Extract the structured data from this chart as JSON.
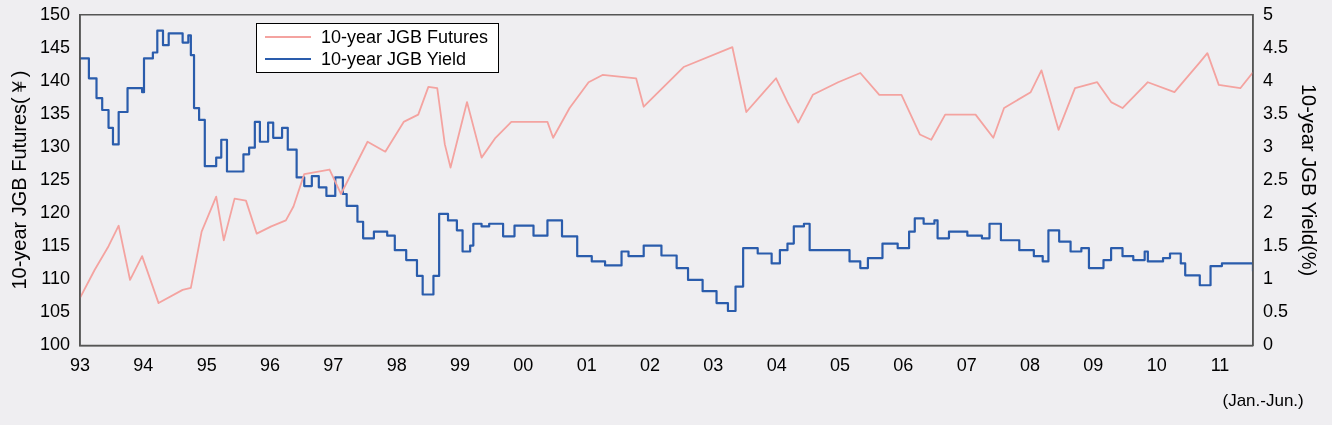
{
  "chart_data": {
    "type": "line",
    "ylabel": "10-year JGB Futures(￥)",
    "y2label": "10-year JGB Yield(%)",
    "xlim": [
      1993,
      2011.52
    ],
    "xticks": [
      {
        "value": 1993,
        "label": "93"
      },
      {
        "value": 1994,
        "label": "94"
      },
      {
        "value": 1995,
        "label": "95"
      },
      {
        "value": 1996,
        "label": "96"
      },
      {
        "value": 1997,
        "label": "97"
      },
      {
        "value": 1998,
        "label": "98"
      },
      {
        "value": 1999,
        "label": "99"
      },
      {
        "value": 2000,
        "label": "00"
      },
      {
        "value": 2001,
        "label": "01"
      },
      {
        "value": 2002,
        "label": "02"
      },
      {
        "value": 2003,
        "label": "03"
      },
      {
        "value": 2004,
        "label": "04"
      },
      {
        "value": 2005,
        "label": "05"
      },
      {
        "value": 2006,
        "label": "06"
      },
      {
        "value": 2007,
        "label": "07"
      },
      {
        "value": 2008,
        "label": "08"
      },
      {
        "value": 2009,
        "label": "09"
      },
      {
        "value": 2010,
        "label": "10"
      },
      {
        "value": 2011,
        "label": "11"
      }
    ],
    "ylim": [
      100,
      150
    ],
    "yticks": [
      100,
      105,
      110,
      115,
      120,
      125,
      130,
      135,
      140,
      145,
      150
    ],
    "y2lim": [
      0,
      5
    ],
    "y2ticks": [
      0,
      0.5,
      1,
      1.5,
      2,
      2.5,
      3,
      3.5,
      4,
      4.5,
      5
    ],
    "grid": false,
    "legend": "top left",
    "marker": "none",
    "annotations": [
      "(Jan.-Jun.)"
    ],
    "series": [
      {
        "name": "10-year JGB Futures",
        "color": "#f4a3a0",
        "x": [
          1993.0,
          1993.23,
          1993.45,
          1993.61,
          1993.79,
          1993.98,
          1994.24,
          1994.62,
          1994.75,
          1994.92,
          1995.15,
          1995.27,
          1995.44,
          1995.62,
          1995.79,
          1996.02,
          1996.25,
          1996.37,
          1996.54,
          1996.94,
          1997.12,
          1997.54,
          1997.82,
          1998.11,
          1998.34,
          1998.5,
          1998.64,
          1998.76,
          1998.85,
          1999.11,
          1999.34,
          1999.56,
          1999.81,
          2000.38,
          2000.47,
          2000.73,
          2001.03,
          2001.25,
          2001.78,
          2001.9,
          2002.53,
          2003.3,
          2003.52,
          2003.99,
          2004.17,
          2004.34,
          2004.57,
          2004.97,
          2005.32,
          2005.62,
          2005.97,
          2006.26,
          2006.44,
          2006.66,
          2007.14,
          2007.42,
          2007.59,
          2008.01,
          2008.18,
          2008.45,
          2008.71,
          2009.06,
          2009.28,
          2009.46,
          2009.86,
          2010.28,
          2010.68,
          2010.8,
          2010.98,
          2011.32,
          2011.52
        ],
        "values": [
          107.2,
          111.4,
          115,
          118.1,
          109.9,
          113.5,
          106.4,
          108.4,
          108.7,
          117.2,
          122.5,
          115.9,
          122.2,
          121.9,
          116.9,
          118,
          118.9,
          121,
          125.9,
          126.6,
          122.9,
          130.8,
          129.3,
          133.8,
          134.9,
          139.1,
          138.9,
          130.4,
          126.9,
          136.8,
          128.4,
          131.4,
          133.8,
          133.8,
          131.4,
          135.9,
          139.8,
          140.9,
          140.4,
          136.1,
          142.1,
          145.1,
          135.3,
          140.4,
          136.8,
          133.7,
          137.9,
          139.8,
          141.2,
          137.9,
          137.9,
          131.9,
          131.1,
          134.9,
          134.9,
          131.4,
          135.9,
          138.3,
          141.6,
          132.6,
          138.9,
          139.8,
          136.8,
          135.9,
          139.8,
          138.3,
          142.8,
          144.2,
          139.4,
          138.9,
          141.3
        ]
      },
      {
        "name": "10-year JGB Yield",
        "color": "#2a5cac",
        "type": "step",
        "axis": "y2",
        "x": [
          1993.0,
          1993.14,
          1993.26,
          1993.35,
          1993.45,
          1993.52,
          1993.61,
          1993.75,
          1993.98,
          1994.01,
          1994.15,
          1994.22,
          1994.31,
          1994.4,
          1994.62,
          1994.71,
          1994.75,
          1994.8,
          1994.88,
          1994.97,
          1995.15,
          1995.23,
          1995.32,
          1995.58,
          1995.67,
          1995.76,
          1995.84,
          1995.97,
          1996.05,
          1996.19,
          1996.28,
          1996.42,
          1996.54,
          1996.66,
          1996.77,
          1996.89,
          1997.03,
          1997.15,
          1997.21,
          1997.38,
          1997.47,
          1997.64,
          1997.85,
          1997.97,
          1998.15,
          1998.32,
          1998.41,
          1998.58,
          1998.67,
          1998.81,
          1998.95,
          1999.04,
          1999.16,
          1999.21,
          1999.34,
          1999.46,
          1999.68,
          1999.86,
          2000.16,
          2000.38,
          2000.61,
          2000.85,
          2001.08,
          2001.29,
          2001.55,
          2001.66,
          2001.9,
          2002.18,
          2002.42,
          2002.6,
          2002.83,
          2003.05,
          2003.23,
          2003.35,
          2003.47,
          2003.7,
          2003.92,
          2004.05,
          2004.17,
          2004.27,
          2004.43,
          2004.52,
          2004.97,
          2005.15,
          2005.32,
          2005.44,
          2005.67,
          2005.91,
          2006.09,
          2006.18,
          2006.32,
          2006.49,
          2006.54,
          2006.72,
          2007.01,
          2007.24,
          2007.36,
          2007.54,
          2007.71,
          2007.83,
          2008.06,
          2008.2,
          2008.29,
          2008.46,
          2008.64,
          2008.81,
          2008.93,
          2009.16,
          2009.28,
          2009.46,
          2009.63,
          2009.81,
          2009.86,
          2010.1,
          2010.21,
          2010.38,
          2010.45,
          2010.68,
          2010.85,
          2011.03,
          2011.25,
          2011.52
        ],
        "values": [
          4.34,
          4.04,
          3.74,
          3.56,
          3.29,
          3.04,
          3.53,
          3.89,
          3.83,
          4.34,
          4.43,
          4.76,
          4.54,
          4.72,
          4.58,
          4.69,
          4.39,
          3.59,
          3.41,
          2.71,
          2.84,
          3.11,
          2.63,
          2.89,
          2.99,
          3.38,
          3.08,
          3.37,
          3.14,
          3.29,
          2.96,
          2.54,
          2.41,
          2.56,
          2.39,
          2.26,
          2.54,
          2.29,
          2.11,
          1.87,
          1.62,
          1.72,
          1.66,
          1.44,
          1.29,
          1.05,
          0.77,
          1.05,
          1.99,
          1.89,
          1.74,
          1.42,
          1.51,
          1.84,
          1.8,
          1.84,
          1.65,
          1.81,
          1.66,
          1.89,
          1.65,
          1.35,
          1.27,
          1.21,
          1.42,
          1.35,
          1.51,
          1.36,
          1.17,
          0.99,
          0.82,
          0.64,
          0.52,
          0.89,
          1.47,
          1.39,
          1.24,
          1.44,
          1.54,
          1.8,
          1.84,
          1.44,
          1.44,
          1.27,
          1.17,
          1.32,
          1.54,
          1.47,
          1.72,
          1.92,
          1.84,
          1.89,
          1.62,
          1.72,
          1.66,
          1.62,
          1.84,
          1.59,
          1.59,
          1.44,
          1.35,
          1.27,
          1.74,
          1.57,
          1.42,
          1.47,
          1.17,
          1.29,
          1.47,
          1.35,
          1.29,
          1.42,
          1.27,
          1.32,
          1.39,
          1.24,
          1.06,
          0.91,
          1.2,
          1.24,
          1.24,
          1.12
        ]
      }
    ]
  }
}
